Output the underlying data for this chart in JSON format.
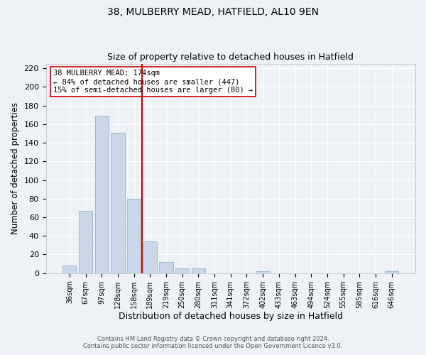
{
  "title": "38, MULBERRY MEAD, HATFIELD, AL10 9EN",
  "subtitle": "Size of property relative to detached houses in Hatfield",
  "xlabel": "Distribution of detached houses by size in Hatfield",
  "ylabel": "Number of detached properties",
  "bar_labels": [
    "36sqm",
    "67sqm",
    "97sqm",
    "128sqm",
    "158sqm",
    "189sqm",
    "219sqm",
    "250sqm",
    "280sqm",
    "311sqm",
    "341sqm",
    "372sqm",
    "402sqm",
    "433sqm",
    "463sqm",
    "494sqm",
    "524sqm",
    "555sqm",
    "585sqm",
    "616sqm",
    "646sqm"
  ],
  "bar_values": [
    8,
    67,
    169,
    151,
    80,
    34,
    12,
    5,
    5,
    0,
    0,
    0,
    2,
    0,
    0,
    0,
    0,
    0,
    0,
    0,
    2
  ],
  "bar_color": "#c8d8e8",
  "bar_edge_color": "#a0b8cc",
  "vline_x": 4.5,
  "vline_color": "#cc0000",
  "annotation_text": "38 MULBERRY MEAD: 174sqm\n← 84% of detached houses are smaller (447)\n15% of semi-detached houses are larger (80) →",
  "annotation_box_color": "#ffffff",
  "annotation_box_edge": "#cc0000",
  "ylim": [
    0,
    225
  ],
  "yticks": [
    0,
    20,
    40,
    60,
    80,
    100,
    120,
    140,
    160,
    180,
    200,
    220
  ],
  "bg_color": "#eef2f6",
  "grid_color": "#ffffff",
  "footer_line1": "Contains HM Land Registry data © Crown copyright and database right 2024.",
  "footer_line2": "Contains public sector information licensed under the Open Government Licence v3.0."
}
